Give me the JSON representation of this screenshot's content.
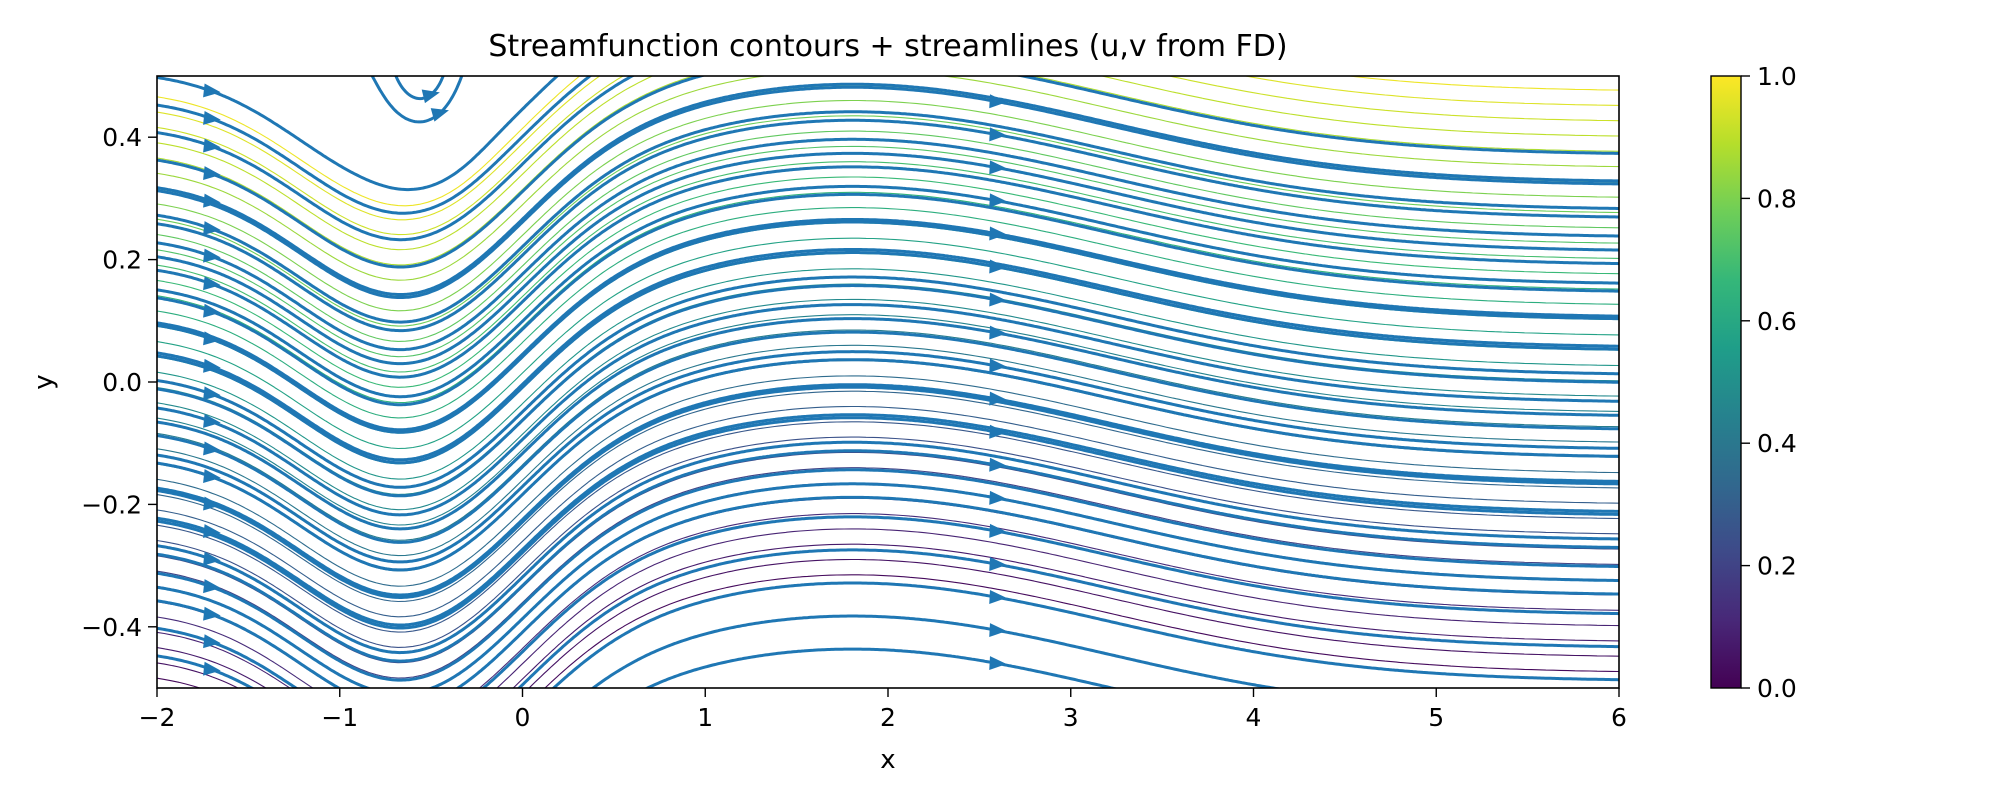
{
  "chart_data": {
    "type": "contour",
    "title": "Streamfunction contours + streamlines (u,v from FD)",
    "xlabel": "x",
    "ylabel": "y",
    "xlim": [
      -2,
      6
    ],
    "ylim": [
      -0.5,
      0.5
    ],
    "x_ticks": [
      -2,
      -1,
      0,
      1,
      2,
      3,
      4,
      5,
      6
    ],
    "x_tick_labels": [
      "−2",
      "−1",
      "0",
      "1",
      "2",
      "3",
      "4",
      "5",
      "6"
    ],
    "y_ticks": [
      -0.4,
      -0.2,
      0.0,
      0.2,
      0.4
    ],
    "y_tick_labels": [
      "−0.4",
      "−0.2",
      "0.0",
      "0.2",
      "0.4"
    ],
    "grid": false,
    "colormap": "viridis",
    "colorbar": {
      "range": [
        0.0,
        1.0
      ],
      "ticks": [
        0.0,
        0.2,
        0.4,
        0.6,
        0.8,
        1.0
      ],
      "tick_labels": [
        "0.0",
        "0.2",
        "0.4",
        "0.6",
        "0.8",
        "1.0"
      ]
    },
    "contour_levels": 40,
    "streamline_color": "#1f77b4",
    "flow_direction": "+x",
    "series": []
  }
}
